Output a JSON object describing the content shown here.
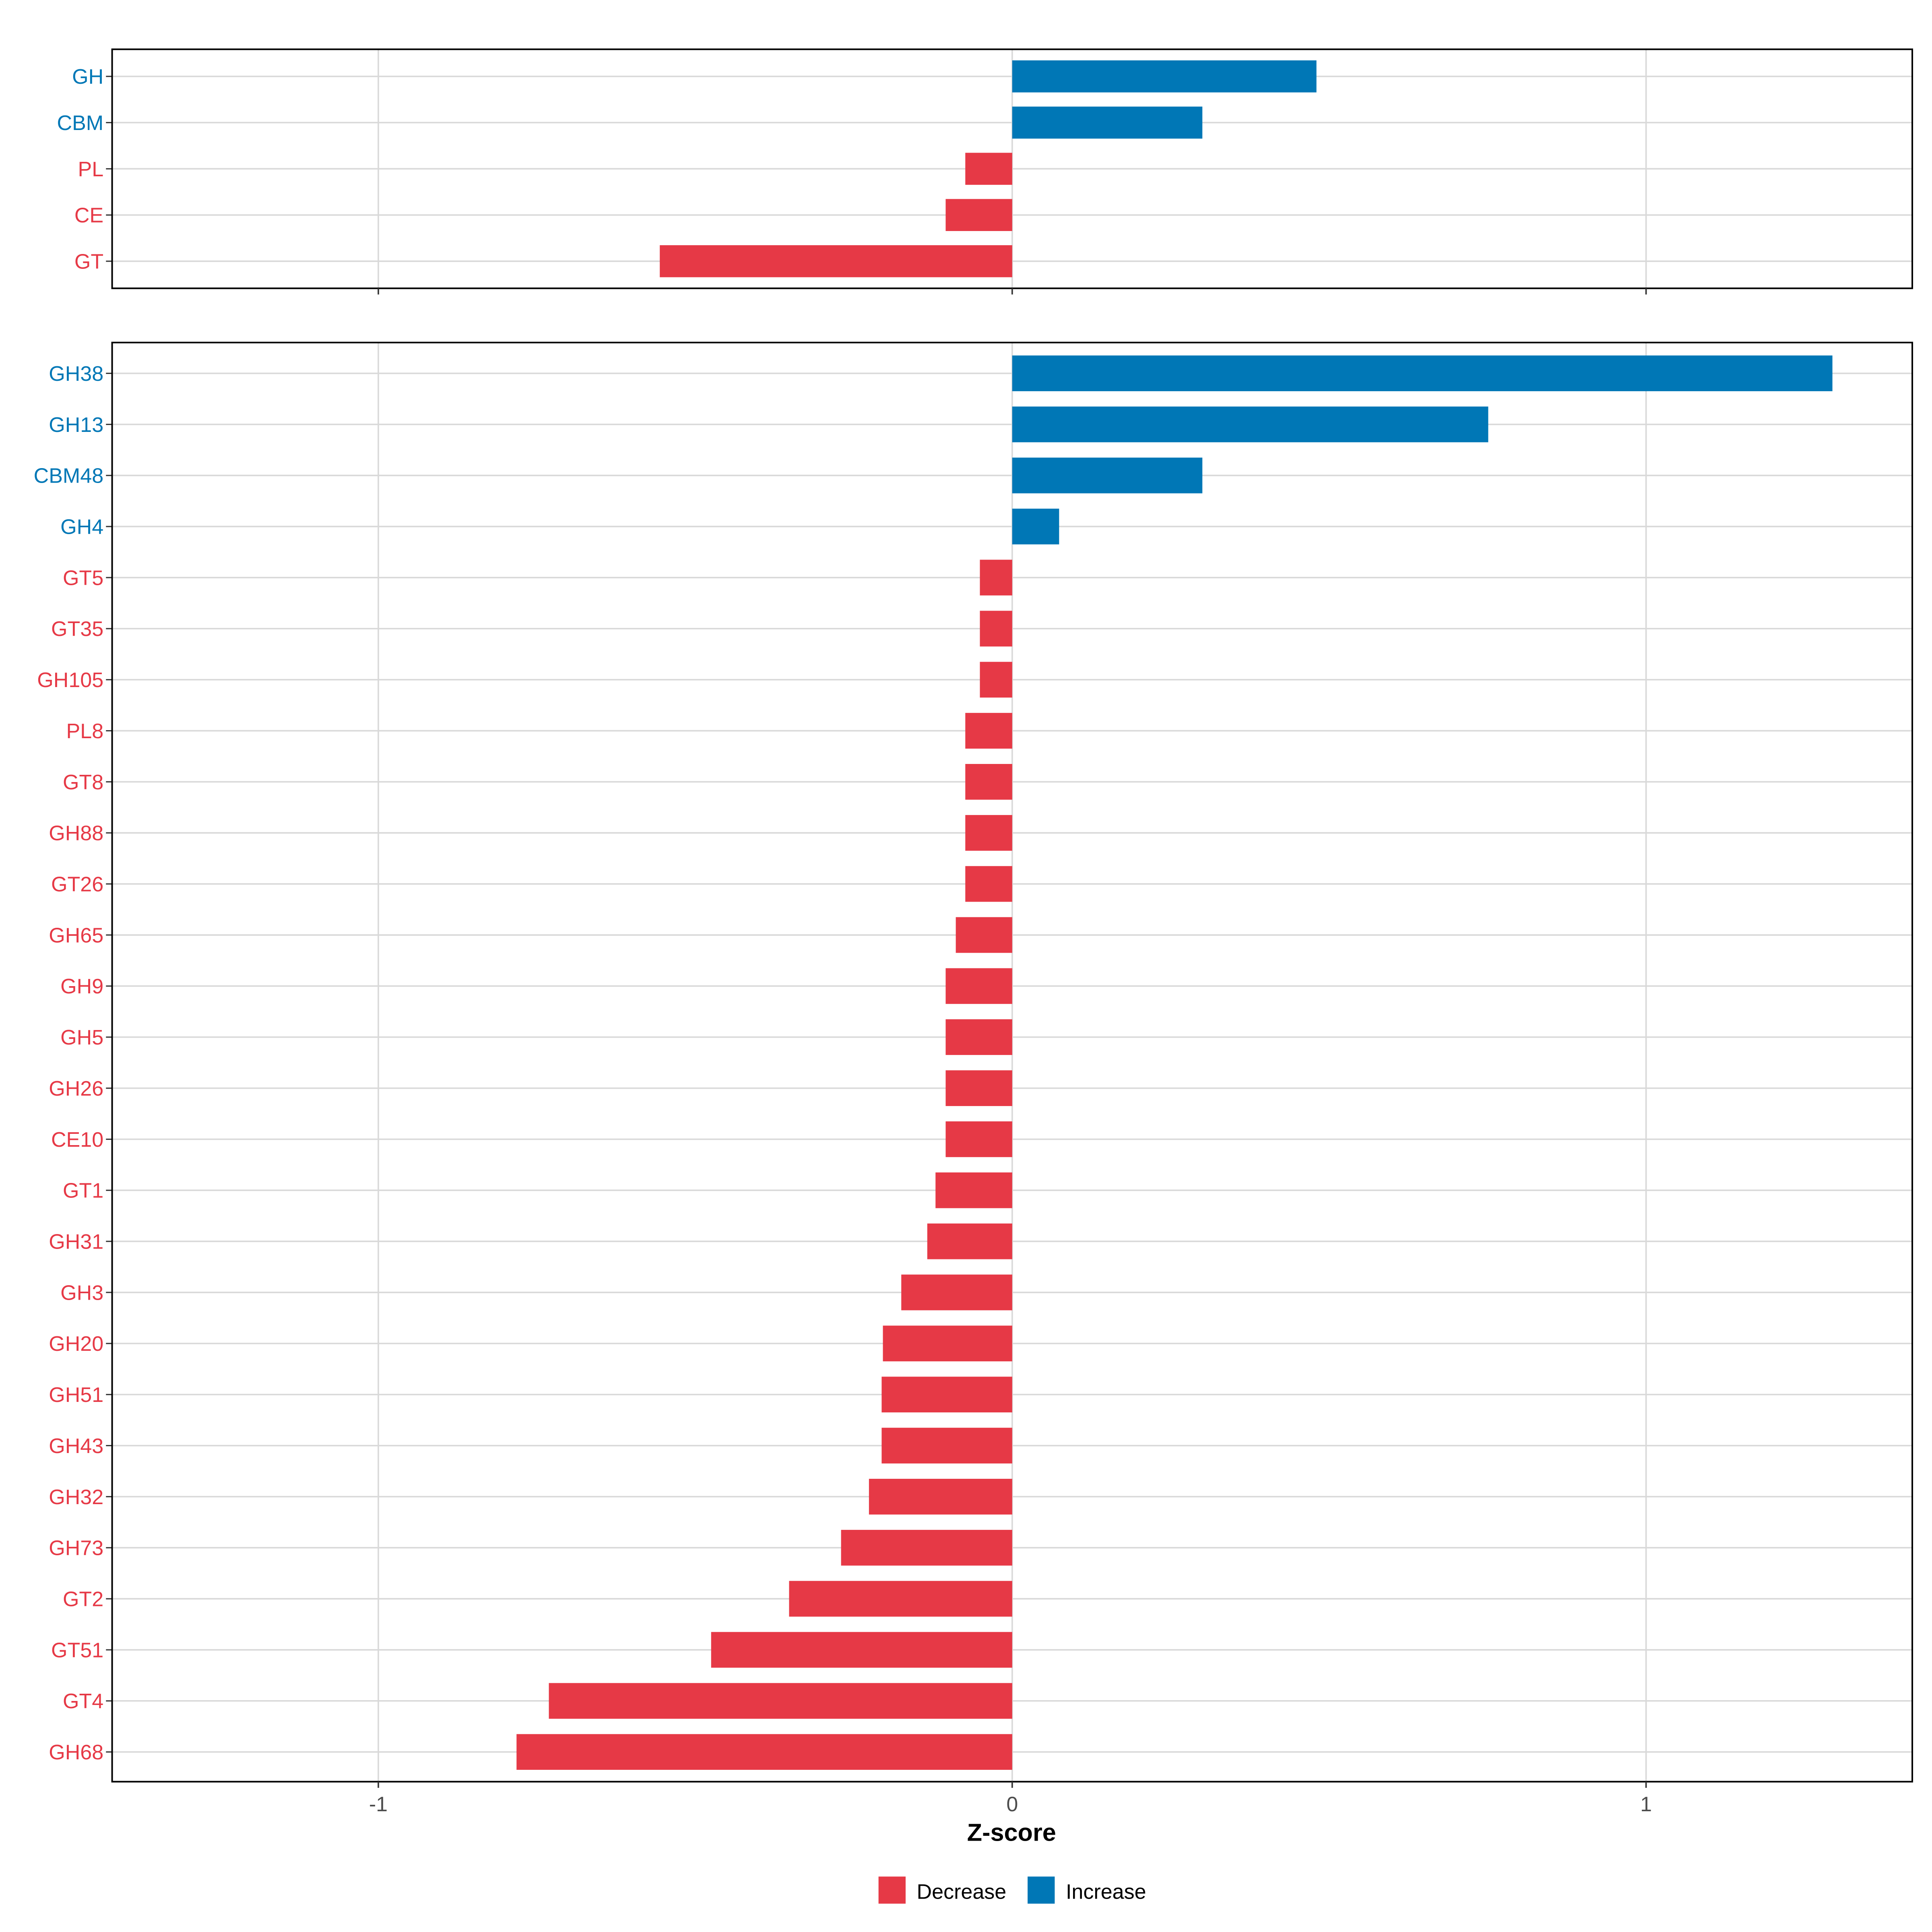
{
  "chart_data": {
    "type": "bar",
    "orientation": "horizontal",
    "xlabel": "Z-score",
    "xlim": [
      -1.42,
      1.42
    ],
    "x_ticks": [
      "-1",
      "0",
      "1"
    ],
    "x_tick_values": [
      -1,
      0,
      1
    ],
    "grid": true,
    "legend": {
      "placement": "bottom",
      "entries": [
        {
          "label": "Decrease",
          "color": "#E63946"
        },
        {
          "label": "Increase",
          "color": "#0077B6"
        }
      ]
    },
    "colors": {
      "Decrease": "#E63946",
      "Increase": "#0077B6"
    },
    "panels": [
      {
        "name": "families",
        "categories": [
          "GH",
          "CBM",
          "PL",
          "CE",
          "GT"
        ],
        "values": [
          0.48,
          0.3,
          -0.074,
          -0.105,
          -0.556
        ]
      },
      {
        "name": "subfamilies",
        "categories": [
          "GH38",
          "GH13",
          "CBM48",
          "GH4",
          "GT5",
          "GT35",
          "GH105",
          "PL8",
          "GT8",
          "GH88",
          "GT26",
          "GH65",
          "GH9",
          "GH5",
          "GH26",
          "CE10",
          "GT1",
          "GH31",
          "GH3",
          "GH20",
          "GH51",
          "GH43",
          "GH32",
          "GH73",
          "GT2",
          "GT51",
          "GT4",
          "GH68"
        ],
        "values": [
          1.294,
          0.751,
          0.3,
          0.074,
          -0.051,
          -0.051,
          -0.051,
          -0.074,
          -0.074,
          -0.074,
          -0.074,
          -0.089,
          -0.105,
          -0.105,
          -0.105,
          -0.105,
          -0.121,
          -0.134,
          -0.175,
          -0.204,
          -0.206,
          -0.206,
          -0.226,
          -0.27,
          -0.352,
          -0.475,
          -0.731,
          -0.782
        ]
      }
    ]
  }
}
